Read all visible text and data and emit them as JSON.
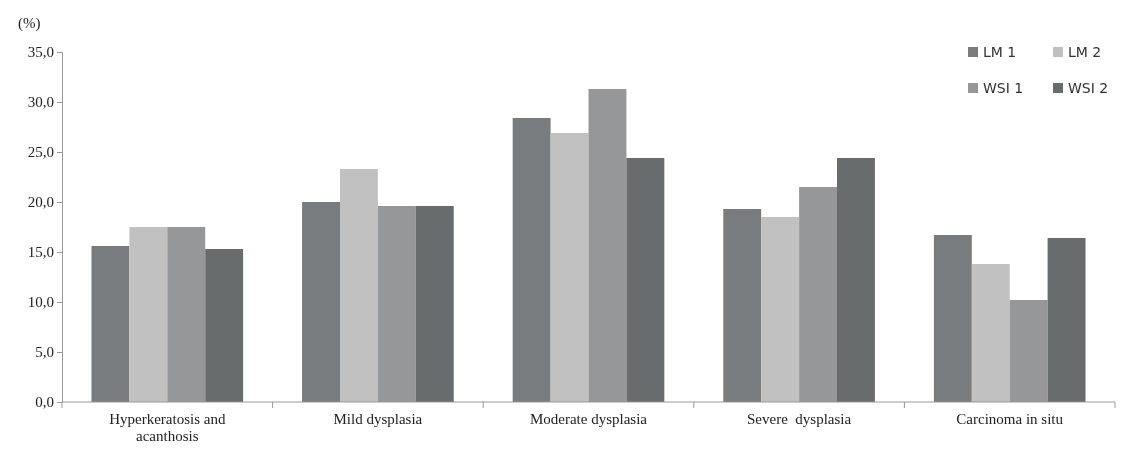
{
  "chart_data": {
    "type": "bar",
    "ylabel": "(%)",
    "categories": [
      "Hyperkeratosis and acanthosis",
      "Mild dysplasia",
      "Moderate dysplasia",
      "Severe  dysplasia",
      "Carcinoma in situ"
    ],
    "series": [
      {
        "name": "LM 1",
        "color": "#787c7e",
        "values": [
          15.6,
          20.0,
          28.4,
          19.3,
          16.7
        ]
      },
      {
        "name": "LM 2",
        "color": "#c0c1c0",
        "values": [
          17.5,
          23.3,
          26.9,
          18.5,
          13.8
        ]
      },
      {
        "name": "WSI 1",
        "color": "#969798",
        "values": [
          17.5,
          19.6,
          31.3,
          21.5,
          10.2
        ]
      },
      {
        "name": "WSI 2",
        "color": "#696c6d",
        "values": [
          15.3,
          19.6,
          24.4,
          24.4,
          16.4
        ]
      }
    ],
    "ylim": [
      0,
      35
    ],
    "yticks": [
      {
        "value": 0,
        "label": "0,0"
      },
      {
        "value": 5,
        "label": "5,0"
      },
      {
        "value": 10,
        "label": "10,0"
      },
      {
        "value": 15,
        "label": "15,0"
      },
      {
        "value": 20,
        "label": "20,0"
      },
      {
        "value": 25,
        "label": "25,0"
      },
      {
        "value": 30,
        "label": "30,0"
      },
      {
        "value": 35,
        "label": "35,0"
      }
    ],
    "grid": false,
    "legend": "top right"
  }
}
